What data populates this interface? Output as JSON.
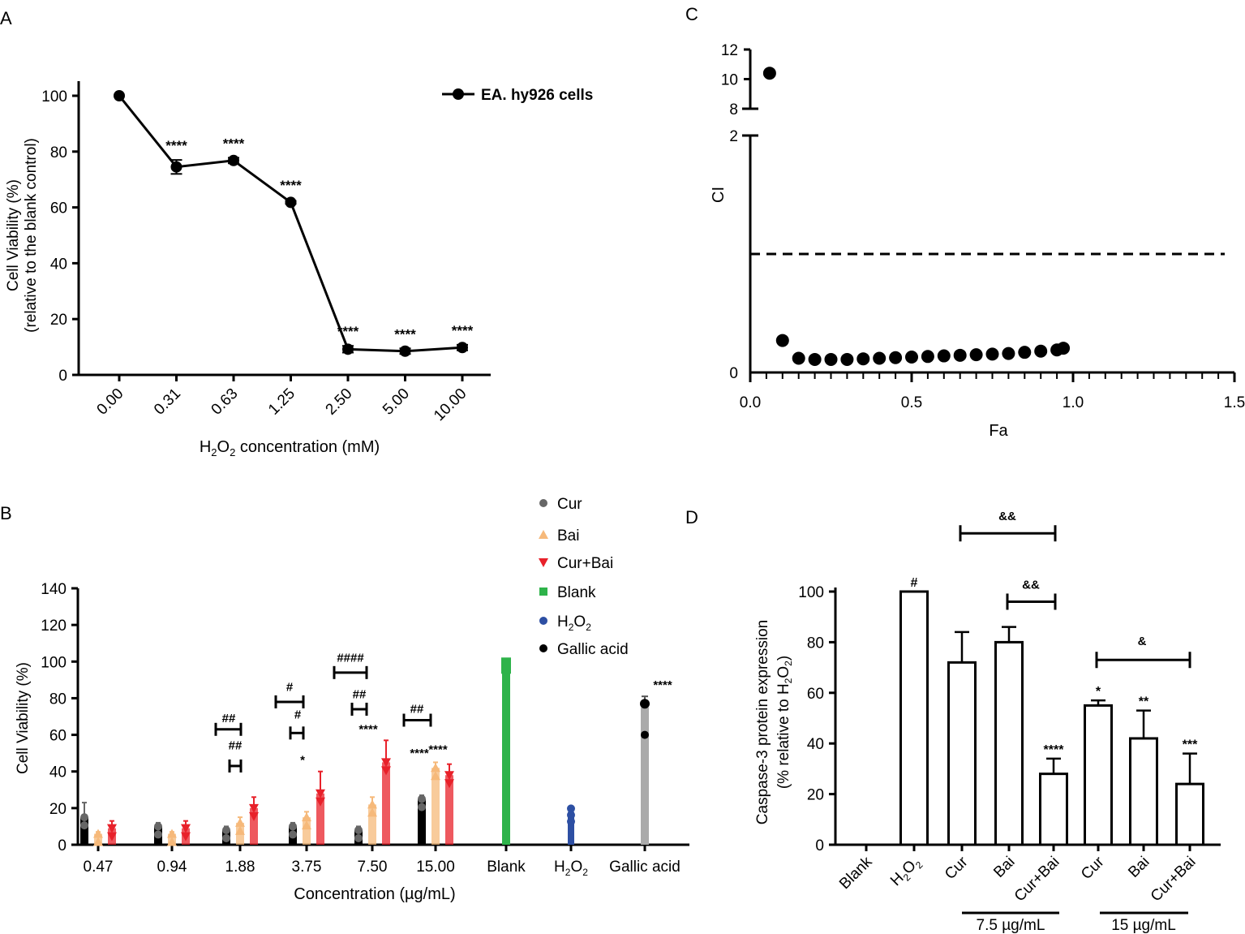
{
  "chart_data": [
    {
      "panel": "A",
      "type": "line",
      "series": [
        {
          "name": "EA. hy926 cells",
          "categories": [
            "0.00",
            "0.31",
            "0.63",
            "1.25",
            "2.50",
            "5.00",
            "10.00"
          ],
          "values": [
            100,
            74.5,
            76.8,
            61.8,
            9.2,
            8.5,
            9.8
          ],
          "errors": [
            0,
            2.5,
            1,
            0.5,
            1.2,
            1,
            1
          ],
          "significance": [
            "",
            "****",
            "****",
            "****",
            "****",
            "****",
            "****"
          ]
        }
      ],
      "ylabel_line1": "Cell Viability  (%)",
      "ylabel_line2": "(relative to the blank control)",
      "xlabel_pre": "H",
      "xlabel_sub1": "2",
      "xlabel_mid": "O",
      "xlabel_sub2": "2",
      "xlabel_post": " concentration (mM)",
      "yticks": [
        "0",
        "20",
        "40",
        "60",
        "80",
        "100"
      ],
      "ylim": [
        0,
        100
      ]
    },
    {
      "panel": "B",
      "type": "bar",
      "categories": [
        "0.47",
        "0.94",
        "1.88",
        "3.75",
        "7.50",
        "15.00",
        "Blank",
        "H2O2",
        "Gallic acid"
      ],
      "category_h2o2": {
        "pre": "H",
        "sub1": "2",
        "mid": "O",
        "sub2": "2"
      },
      "series": [
        {
          "name": "Cur",
          "color": "#666666",
          "values": [
            15,
            10,
            8,
            10,
            8,
            25,
            null,
            null,
            null
          ],
          "errors": [
            8,
            2,
            2,
            2,
            2,
            2,
            null,
            null,
            null
          ],
          "mark_color": "#000000"
        },
        {
          "name": "Bai",
          "color": "#f6b97a",
          "values": [
            6,
            6,
            12,
            15,
            22,
            42,
            null,
            null,
            null
          ],
          "errors": [
            1,
            1,
            3,
            3,
            4,
            3,
            null,
            null,
            null
          ]
        },
        {
          "name": "Cur+Bai",
          "color": "#e8212a",
          "values": [
            9,
            9,
            20,
            28,
            45,
            38,
            null,
            null,
            null
          ],
          "errors": [
            4,
            4,
            6,
            12,
            12,
            6,
            null,
            null,
            null
          ]
        },
        {
          "name": "Blank",
          "color": "#2eb34a",
          "values": [
            null,
            null,
            null,
            null,
            null,
            null,
            100,
            null,
            null
          ],
          "errors": [
            null,
            null,
            null,
            null,
            null,
            null,
            2,
            null,
            null
          ]
        },
        {
          "name": "H2O2",
          "name_pre": "H",
          "name_sub1": "2",
          "name_mid": "O",
          "name_sub2": "2",
          "color": "#2d4fa3",
          "values": [
            null,
            null,
            null,
            null,
            null,
            null,
            null,
            18,
            null
          ],
          "errors": [
            null,
            null,
            null,
            null,
            null,
            null,
            null,
            3,
            null
          ]
        },
        {
          "name": "Gallic acid",
          "color": "#000000",
          "bar_color": "#aaaaaa",
          "values": [
            null,
            null,
            null,
            null,
            null,
            null,
            null,
            null,
            75
          ],
          "errors": [
            null,
            null,
            null,
            null,
            null,
            null,
            null,
            null,
            6
          ]
        }
      ],
      "annotations": {
        "star_15_bai": "****",
        "star_15_curbai": "****",
        "star_gallic": "****",
        "star_750": "****",
        "star_375": "*",
        "hash_188_a": "##",
        "hash_188_b": "##",
        "hash_375_a": "#",
        "hash_375_b": "#",
        "hash_750_a": "####",
        "hash_750_b": "##",
        "hash_15": "##"
      },
      "ylabel": "Cell Viability (%)",
      "xlabel": "Concentration (µg/mL)",
      "yticks": [
        "0",
        "20",
        "40",
        "60",
        "80",
        "100",
        "120",
        "140"
      ],
      "ylim": [
        0,
        140
      ]
    },
    {
      "panel": "C",
      "type": "scatter",
      "x": [
        0.06,
        0.1,
        0.15,
        0.2,
        0.25,
        0.3,
        0.35,
        0.4,
        0.45,
        0.5,
        0.55,
        0.6,
        0.65,
        0.7,
        0.75,
        0.8,
        0.85,
        0.9,
        0.95,
        0.97
      ],
      "y": [
        10.4,
        0.27,
        0.12,
        0.11,
        0.11,
        0.11,
        0.115,
        0.12,
        0.125,
        0.13,
        0.135,
        0.14,
        0.145,
        0.15,
        0.155,
        0.16,
        0.17,
        0.18,
        0.19,
        0.205
      ],
      "reference_line_y": 1,
      "ylabel": "CI",
      "xlabel": "Fa",
      "xticks": [
        "0.0",
        "0.5",
        "1.0",
        "1.5"
      ],
      "yticks_lower": [
        "0",
        "2"
      ],
      "yticks_upper": [
        "8",
        "10",
        "12"
      ],
      "xlim": [
        0,
        1.5
      ],
      "ylim_lower": [
        0,
        2
      ],
      "ylim_upper": [
        8,
        12
      ]
    },
    {
      "panel": "D",
      "type": "bar",
      "categories": [
        "Blank",
        "H2O2",
        "Cur",
        "Bai",
        "Cur+Bai",
        "Cur",
        "Bai",
        "Cur+Bai"
      ],
      "category_h2o2": {
        "pre": "H",
        "sub1": "2",
        "mid": "O",
        "sub2": "2"
      },
      "values": [
        0,
        100,
        72,
        80,
        28,
        55,
        42,
        24
      ],
      "errors": [
        0,
        0,
        12,
        6,
        6,
        2,
        11,
        12
      ],
      "significance": [
        "",
        "#",
        "",
        "",
        "****",
        "*",
        "**",
        "***"
      ],
      "brackets": [
        "&&",
        "&&",
        "&"
      ],
      "group_labels": [
        "7.5 µg/mL",
        "15 µg/mL"
      ],
      "ylabel_line1": "Caspase-3 protein expression",
      "ylabel_line2_pre": "(% relative to H",
      "ylabel_line2_sub1": "2",
      "ylabel_line2_mid": "O",
      "ylabel_line2_sub2": "2",
      "ylabel_line2_post": ")",
      "yticks": [
        "0",
        "20",
        "40",
        "60",
        "80",
        "100"
      ],
      "ylim": [
        0,
        100
      ]
    }
  ],
  "panel_labels": [
    "A",
    "B",
    "C",
    "D"
  ]
}
